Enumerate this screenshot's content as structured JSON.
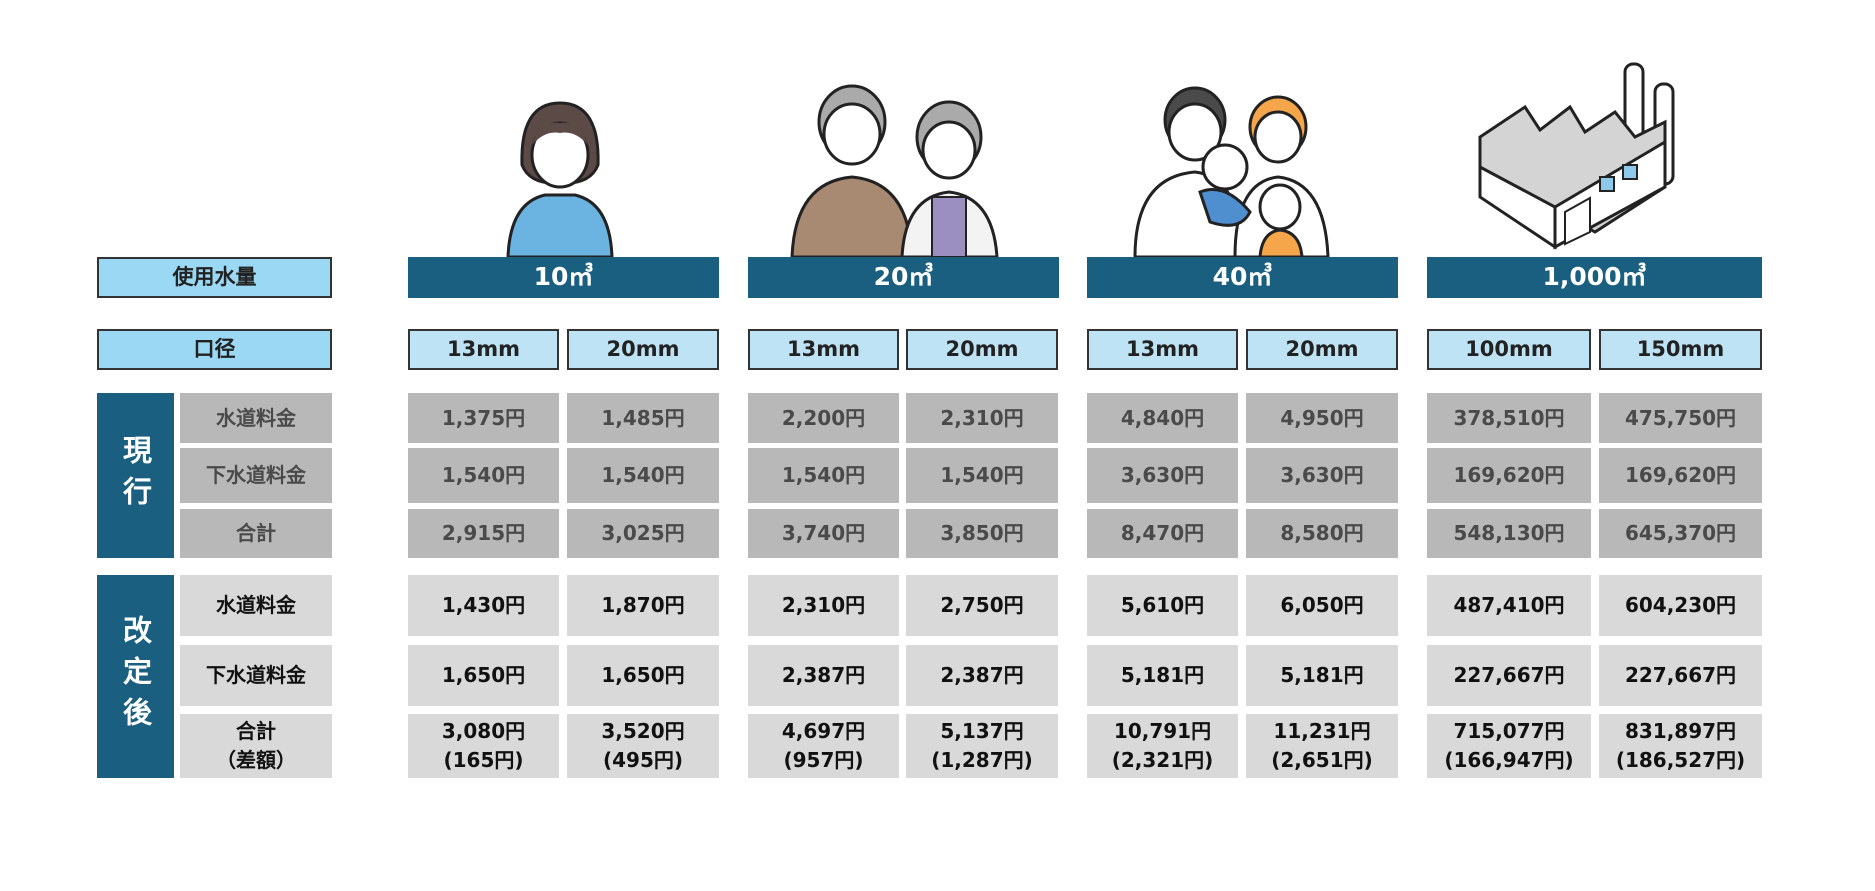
{
  "usage": {
    "label": "使用水量",
    "values": [
      "10㎥",
      "20㎥",
      "40㎥",
      "1,000㎥"
    ]
  },
  "diameter": {
    "label": "口径",
    "values": [
      "13mm",
      "20mm",
      "13mm",
      "20mm",
      "13mm",
      "20mm",
      "100mm",
      "150mm"
    ]
  },
  "current": {
    "label": "現行",
    "rows": [
      {
        "label": "水道料金",
        "cells": [
          "1,375円",
          "1,485円",
          "2,200円",
          "2,310円",
          "4,840円",
          "4,950円",
          "378,510円",
          "475,750円"
        ]
      },
      {
        "label": "下水道料金",
        "cells": [
          "1,540円",
          "1,540円",
          "1,540円",
          "1,540円",
          "3,630円",
          "3,630円",
          "169,620円",
          "169,620円"
        ]
      },
      {
        "label": "合計",
        "cells": [
          "2,915円",
          "3,025円",
          "3,740円",
          "3,850円",
          "8,470円",
          "8,580円",
          "548,130円",
          "645,370円"
        ]
      }
    ]
  },
  "revised": {
    "label": "改定後",
    "rows": [
      {
        "label": "水道料金",
        "cells": [
          "1,430円",
          "1,870円",
          "2,310円",
          "2,750円",
          "5,610円",
          "6,050円",
          "487,410円",
          "604,230円"
        ]
      },
      {
        "label": "下水道料金",
        "cells": [
          "1,650円",
          "1,650円",
          "2,387円",
          "2,387円",
          "5,181円",
          "5,181円",
          "227,667円",
          "227,667円"
        ]
      },
      {
        "label": "合計",
        "note": "（差額）",
        "cells": [
          "3,080円",
          "3,520円",
          "4,697円",
          "5,137円",
          "10,791円",
          "11,231円",
          "715,077円",
          "831,897円"
        ],
        "differences": [
          "(165円)",
          "(495円)",
          "(957円)",
          "(1,287円)",
          "(2,321円)",
          "(2,651円)",
          "(166,947円)",
          "(186,527円)"
        ]
      }
    ]
  }
}
